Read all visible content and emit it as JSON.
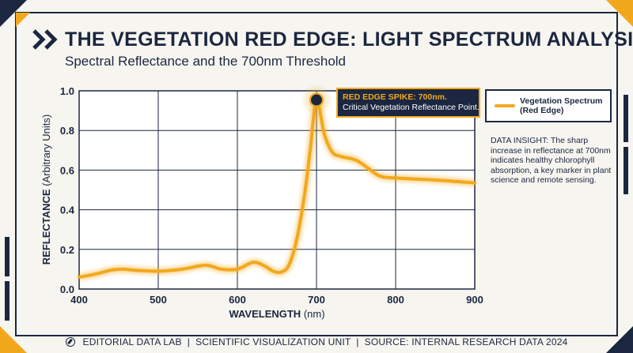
{
  "header": {
    "title": "THE VEGETATION RED EDGE: LIGHT SPECTRUM ANALYSIS",
    "subtitle": "Spectral Reflectance and the 700nm Threshold"
  },
  "colors": {
    "navy": "#1b2640",
    "accent": "#f2a81d",
    "background": "#f6f5ef"
  },
  "legend": {
    "label": "Vegetation Spectrum (Red Edge)"
  },
  "callout": {
    "title": "RED EDGE SPIKE: 700nm.",
    "text": "Critical Vegetation Reflectance Point."
  },
  "insight": {
    "text": "DATA INSIGHT: The sharp increase in reflectance at 700nm indicates healthy chlorophyll absorption, a key marker in plant science and remote sensing."
  },
  "footer": {
    "text": "EDITORIAL DATA LAB  |  SCIENTIFIC VISUALIZATION UNIT  |  SOURCE: INTERNAL RESEARCH DATA 2024"
  },
  "chart_data": {
    "type": "line",
    "xlabel_bold": "WAVELENGTH",
    "xlabel_unit": "(nm)",
    "ylabel_bold": "REFLECTANCE",
    "ylabel_unit": "(Arbitrary Units)",
    "xlim": [
      400,
      900
    ],
    "ylim": [
      0,
      1
    ],
    "x_ticks": [
      400,
      500,
      600,
      700,
      800,
      900
    ],
    "y_ticks": [
      0.0,
      0.2,
      0.4,
      0.6,
      0.8,
      1.0
    ],
    "y_tick_labels": [
      "0.0",
      "0.2",
      "0.4",
      "0.6",
      "0.8",
      "1.0"
    ],
    "grid": true,
    "legend_position": "right",
    "series": [
      {
        "name": "Vegetation Spectrum (Red Edge)",
        "x": [
          400,
          420,
          440,
          455,
          470,
          500,
          530,
          560,
          580,
          600,
          620,
          635,
          645,
          655,
          665,
          675,
          685,
          692,
          700,
          710,
          720,
          730,
          750,
          765,
          780,
          800,
          850,
          900
        ],
        "y": [
          0.06,
          0.075,
          0.095,
          0.1,
          0.095,
          0.09,
          0.1,
          0.12,
          0.1,
          0.1,
          0.135,
          0.115,
          0.09,
          0.085,
          0.12,
          0.25,
          0.48,
          0.7,
          0.95,
          0.78,
          0.69,
          0.67,
          0.65,
          0.61,
          0.57,
          0.56,
          0.55,
          0.535
        ]
      }
    ],
    "highlight_point": {
      "x": 700,
      "y": 0.95
    }
  }
}
